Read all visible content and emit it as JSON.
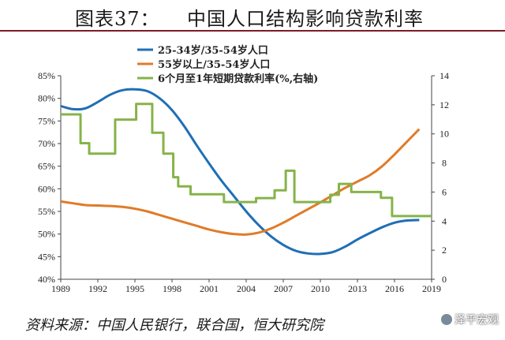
{
  "title": "图表37：    中国人口结构影响贷款利率",
  "source": "资料来源：中国人民银行，联合国，恒大研究院",
  "watermark": "泽平宏观",
  "colors": {
    "series1": "#1f6fb5",
    "series2": "#e07b28",
    "series3": "#86b34a",
    "title_rule": "#7a1c2a"
  },
  "chart_data": {
    "type": "line",
    "xlim": [
      1989,
      2019
    ],
    "x_ticks": [
      "1989",
      "1992",
      "1995",
      "1998",
      "2001",
      "2004",
      "2007",
      "2010",
      "2013",
      "2016",
      "2019"
    ],
    "y_left": {
      "lim": [
        40,
        85
      ],
      "ticks": [
        "40%",
        "45%",
        "50%",
        "55%",
        "60%",
        "65%",
        "70%",
        "75%",
        "80%",
        "85%"
      ]
    },
    "y_right": {
      "lim": [
        0,
        14
      ],
      "ticks": [
        "0",
        "2",
        "4",
        "6",
        "8",
        "10",
        "12",
        "14"
      ]
    },
    "legend_position": "top-left",
    "series": [
      {
        "name": "25-34岁/35-54岁人口",
        "axis": "left",
        "color": "#1f6fb5",
        "x": [
          1989,
          1990,
          1991,
          1992,
          1993,
          1994,
          1995,
          1996,
          1997,
          1998,
          1999,
          2000,
          2001,
          2002,
          2003,
          2004,
          2005,
          2006,
          2007,
          2008,
          2009,
          2010,
          2011,
          2012,
          2013,
          2014,
          2015,
          2016,
          2017,
          2018
        ],
        "y": [
          78.3,
          77.6,
          77.8,
          79.2,
          80.8,
          81.8,
          82.0,
          81.6,
          80.0,
          77.4,
          73.8,
          69.6,
          65.6,
          61.8,
          58.4,
          55.0,
          52.0,
          49.5,
          47.6,
          46.3,
          45.7,
          45.6,
          46.0,
          47.2,
          48.8,
          50.2,
          51.5,
          52.5,
          53.0,
          53.1
        ]
      },
      {
        "name": "55岁以上/35-54岁人口",
        "axis": "left",
        "color": "#e07b28",
        "x": [
          1989,
          1990,
          1991,
          1992,
          1993,
          1994,
          1995,
          1996,
          1997,
          1998,
          1999,
          2000,
          2001,
          2002,
          2003,
          2004,
          2005,
          2006,
          2007,
          2008,
          2009,
          2010,
          2011,
          2012,
          2013,
          2014,
          2015,
          2016,
          2017,
          2018
        ],
        "y": [
          57.2,
          56.8,
          56.4,
          56.3,
          56.2,
          56.0,
          55.6,
          55.0,
          54.2,
          53.4,
          52.6,
          51.8,
          51.0,
          50.4,
          50.0,
          49.9,
          50.3,
          51.2,
          52.5,
          54.0,
          55.5,
          57.0,
          58.6,
          60.2,
          61.6,
          63.0,
          65.0,
          67.6,
          70.4,
          73.2
        ]
      },
      {
        "name": "6个月至1年短期贷款利率(%,右轴)",
        "axis": "right",
        "type": "step",
        "color": "#86b34a",
        "x": [
          1989,
          1990.6,
          1991.3,
          1993.4,
          1995.1,
          1996.4,
          1997.3,
          1998.1,
          1998.5,
          1999.5,
          2002.2,
          2004.8,
          2006.3,
          2007.2,
          2007.9,
          2008.8,
          2010.8,
          2011.5,
          2012.5,
          2014.9,
          2015.8,
          2016,
          2019
        ],
        "y": [
          11.34,
          9.36,
          8.64,
          10.98,
          12.06,
          10.08,
          8.64,
          7.02,
          6.39,
          5.85,
          5.31,
          5.58,
          6.12,
          7.47,
          5.31,
          5.31,
          5.81,
          6.56,
          6.0,
          5.6,
          4.35,
          4.35,
          4.35
        ]
      }
    ]
  }
}
